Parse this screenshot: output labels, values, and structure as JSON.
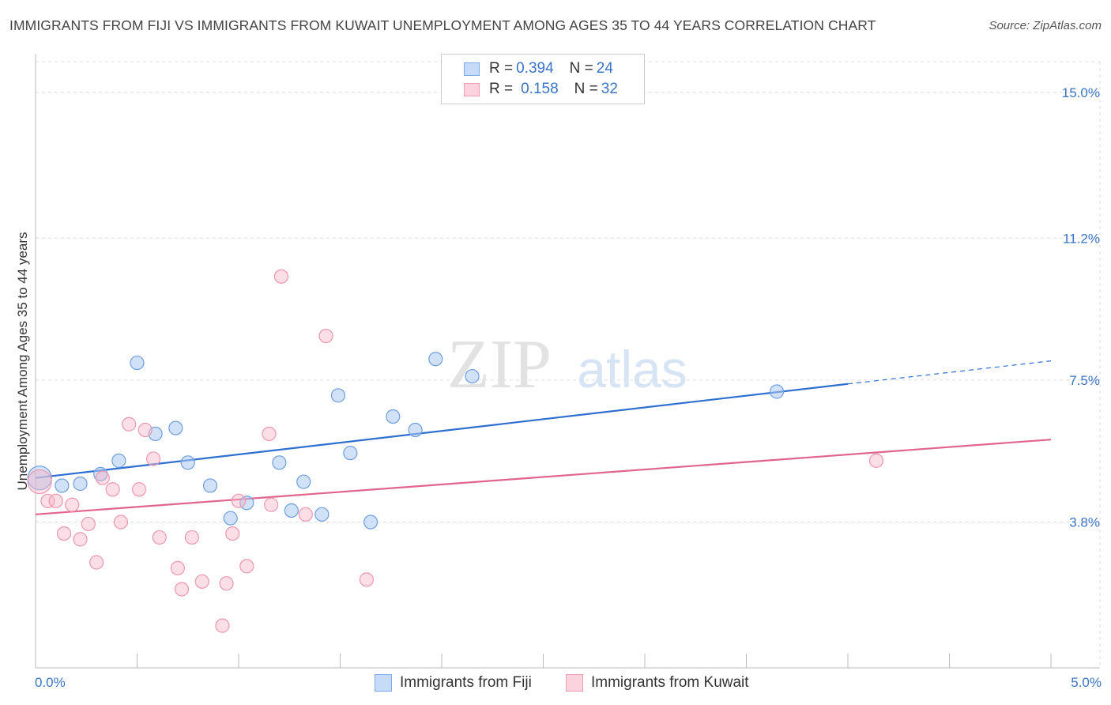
{
  "title": "IMMIGRANTS FROM FIJI VS IMMIGRANTS FROM KUWAIT UNEMPLOYMENT AMONG AGES 35 TO 44 YEARS CORRELATION CHART",
  "source": "Source: ZipAtlas.com",
  "watermark": {
    "zip": "ZIP",
    "atlas": "atlas"
  },
  "legend": {
    "rows": [
      {
        "r_label": "R = ",
        "r_value": "0.394",
        "n_label": "N = ",
        "n_value": "24",
        "color": "#a9c8f3"
      },
      {
        "r_label": "R = ",
        "r_value": "0.158",
        "n_label": "N = ",
        "n_value": "32",
        "color": "#f6b6c8"
      }
    ]
  },
  "chart_data": {
    "type": "scatter",
    "title": "IMMIGRANTS FROM FIJI VS IMMIGRANTS FROM KUWAIT UNEMPLOYMENT AMONG AGES 35 TO 44 YEARS CORRELATION CHART",
    "xlabel": "",
    "ylabel": "Unemployment Among Ages 35 to 44 years",
    "xlim": [
      0,
      5.0
    ],
    "ylim": [
      0,
      15.8
    ],
    "x_tick_labels": [
      "0.0%",
      "5.0%"
    ],
    "y_ticks": [
      3.8,
      7.5,
      11.2,
      15.0
    ],
    "y_tick_labels": [
      "3.8%",
      "7.5%",
      "11.2%",
      "15.0%"
    ],
    "grid": true,
    "legend_position": "top-center",
    "series": [
      {
        "name": "Immigrants from Fiji",
        "color": "#a9c8f3",
        "line_color": "#2f6fd0",
        "trend": {
          "x0": 0.0,
          "y0": 4.95,
          "x1": 4.0,
          "y1": 7.4,
          "dash_to_x": 5.0,
          "dash_to_y": 8.0
        },
        "points": [
          {
            "x": 0.02,
            "y": 4.95,
            "big": true
          },
          {
            "x": 0.13,
            "y": 4.75
          },
          {
            "x": 0.22,
            "y": 4.8
          },
          {
            "x": 0.32,
            "y": 5.05
          },
          {
            "x": 0.41,
            "y": 5.4
          },
          {
            "x": 0.5,
            "y": 7.95
          },
          {
            "x": 0.59,
            "y": 6.1
          },
          {
            "x": 0.69,
            "y": 6.25
          },
          {
            "x": 0.75,
            "y": 5.35
          },
          {
            "x": 0.86,
            "y": 4.75
          },
          {
            "x": 0.96,
            "y": 3.9
          },
          {
            "x": 1.04,
            "y": 4.3
          },
          {
            "x": 1.2,
            "y": 5.35
          },
          {
            "x": 1.26,
            "y": 4.1
          },
          {
            "x": 1.32,
            "y": 4.85
          },
          {
            "x": 1.41,
            "y": 4.0
          },
          {
            "x": 1.49,
            "y": 7.1
          },
          {
            "x": 1.55,
            "y": 5.6
          },
          {
            "x": 1.65,
            "y": 3.8
          },
          {
            "x": 1.76,
            "y": 6.55
          },
          {
            "x": 1.87,
            "y": 6.2
          },
          {
            "x": 1.97,
            "y": 8.05
          },
          {
            "x": 2.15,
            "y": 7.6
          },
          {
            "x": 3.65,
            "y": 7.2
          }
        ]
      },
      {
        "name": "Immigrants from Kuwait",
        "color": "#f6b6c8",
        "line_color": "#e0648c",
        "trend": {
          "x0": 0.0,
          "y0": 4.0,
          "x1": 5.0,
          "y1": 5.95
        },
        "points": [
          {
            "x": 0.02,
            "y": 4.85,
            "big": true
          },
          {
            "x": 0.06,
            "y": 4.35
          },
          {
            "x": 0.1,
            "y": 4.35
          },
          {
            "x": 0.14,
            "y": 3.5
          },
          {
            "x": 0.18,
            "y": 4.25
          },
          {
            "x": 0.22,
            "y": 3.35
          },
          {
            "x": 0.26,
            "y": 3.75
          },
          {
            "x": 0.3,
            "y": 2.75
          },
          {
            "x": 0.33,
            "y": 4.95
          },
          {
            "x": 0.38,
            "y": 4.65
          },
          {
            "x": 0.42,
            "y": 3.8
          },
          {
            "x": 0.46,
            "y": 6.35
          },
          {
            "x": 0.51,
            "y": 4.65
          },
          {
            "x": 0.54,
            "y": 6.2
          },
          {
            "x": 0.58,
            "y": 5.45
          },
          {
            "x": 0.61,
            "y": 3.4
          },
          {
            "x": 0.7,
            "y": 2.6
          },
          {
            "x": 0.72,
            "y": 2.05
          },
          {
            "x": 0.77,
            "y": 3.4
          },
          {
            "x": 0.82,
            "y": 2.25
          },
          {
            "x": 0.92,
            "y": 1.1
          },
          {
            "x": 0.94,
            "y": 2.2
          },
          {
            "x": 0.97,
            "y": 3.5
          },
          {
            "x": 1.0,
            "y": 4.35
          },
          {
            "x": 1.04,
            "y": 2.65
          },
          {
            "x": 1.15,
            "y": 6.1
          },
          {
            "x": 1.16,
            "y": 4.25
          },
          {
            "x": 1.21,
            "y": 10.2
          },
          {
            "x": 1.33,
            "y": 4.0
          },
          {
            "x": 1.43,
            "y": 8.65
          },
          {
            "x": 1.63,
            "y": 2.3
          },
          {
            "x": 4.14,
            "y": 5.4
          }
        ]
      }
    ]
  }
}
